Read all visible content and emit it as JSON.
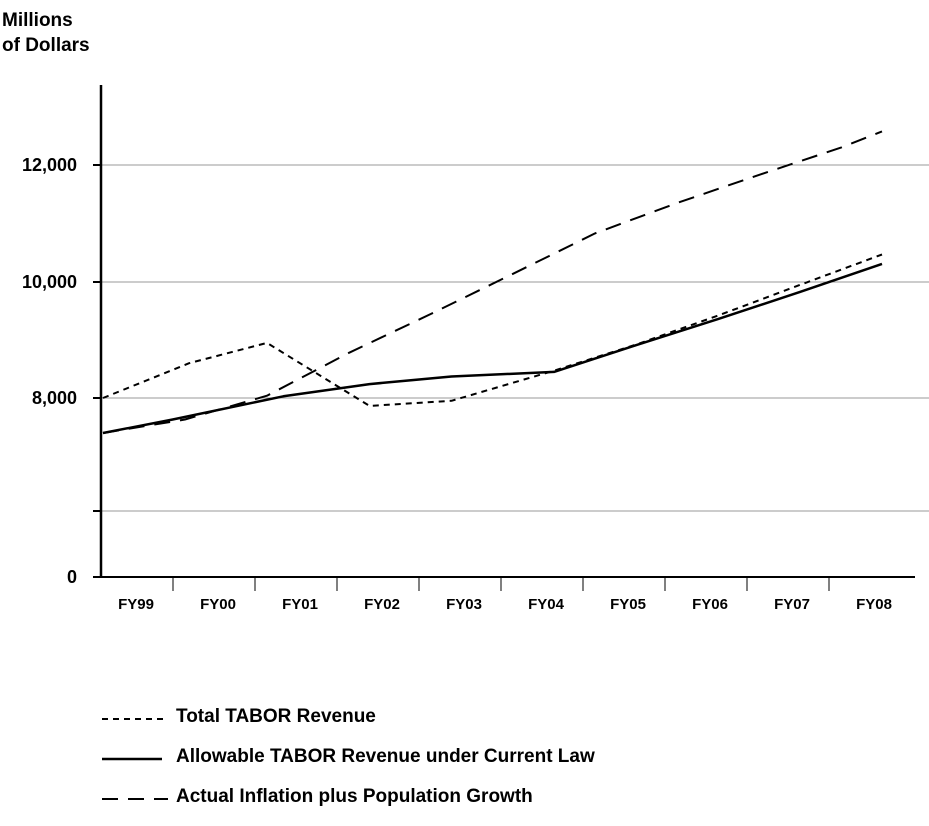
{
  "chart_data": {
    "type": "line",
    "ylabel": "Millions of Dollars",
    "ylabel_lines": [
      "Millions",
      "of Dollars"
    ],
    "categories": [
      "FY99",
      "FY00",
      "FY01",
      "FY02",
      "FY03",
      "FY04",
      "FY05",
      "FY06",
      "FY07",
      "FY08"
    ],
    "y_ticks": [
      {
        "value": 0,
        "label": "0"
      },
      {
        "value": 6000,
        "label": ""
      },
      {
        "value": 8000,
        "label": "8,000"
      },
      {
        "value": 10000,
        "label": "10,000"
      },
      {
        "value": 12000,
        "label": "12,000"
      }
    ],
    "grid": true,
    "legend_position": "bottom-left",
    "series": [
      {
        "name": "Total TABOR Revenue",
        "style": "dotted",
        "x": [
          0,
          1.05,
          2.0,
          3.25,
          4.25,
          5.5,
          6.5,
          7.5,
          8.5,
          9.5
        ],
        "values": [
          8000,
          8600,
          8950,
          7860,
          7950,
          8470,
          8920,
          9420,
          9950,
          10470
        ]
      },
      {
        "name": "Allowable TABOR Revenue under Current Law",
        "style": "solid",
        "x": [
          0,
          0.85,
          2.2,
          3.25,
          4.25,
          5.5,
          6.5,
          7.5,
          8.5,
          9.5
        ],
        "values": [
          7380,
          7620,
          8030,
          8240,
          8370,
          8450,
          8910,
          9360,
          9830,
          10310
        ]
      },
      {
        "name": "Actual Inflation plus Population Growth",
        "style": "dashed",
        "x": [
          0,
          1.0,
          2.0,
          3.0,
          4.0,
          5.0,
          6.0,
          7.0,
          8.0,
          9.0,
          9.5
        ],
        "values": [
          7380,
          7620,
          8040,
          8780,
          9450,
          10140,
          10830,
          11350,
          11830,
          12300,
          12580
        ]
      }
    ]
  }
}
